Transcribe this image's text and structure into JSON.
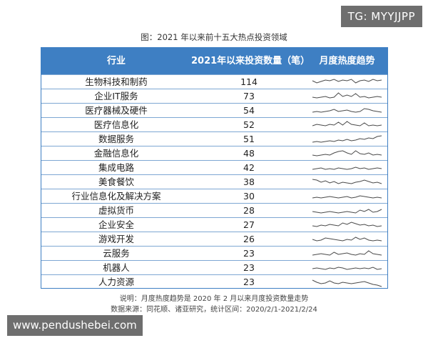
{
  "watermark_top": "TG: MYYJJPP",
  "title": "图：2021 年以来前十五大热点投资领域",
  "table": {
    "headers": [
      "行业",
      "2021年以来投资数量（笔）",
      "月度热度趋势"
    ],
    "rows": [
      {
        "name": "生物科技和制药",
        "count": "114"
      },
      {
        "name": "企业IT服务",
        "count": "73"
      },
      {
        "name": "医疗器械及硬件",
        "count": "54"
      },
      {
        "name": "医疗信息化",
        "count": "52"
      },
      {
        "name": "数据服务",
        "count": "51"
      },
      {
        "name": "金融信息化",
        "count": "48"
      },
      {
        "name": "集成电路",
        "count": "42"
      },
      {
        "name": "美食餐饮",
        "count": "38"
      },
      {
        "name": "行业信息化及解决方案",
        "count": "30"
      },
      {
        "name": "虚拟货币",
        "count": "28"
      },
      {
        "name": "企业安全",
        "count": "27"
      },
      {
        "name": "游戏开发",
        "count": "26"
      },
      {
        "name": "云服务",
        "count": "23"
      },
      {
        "name": "机器人",
        "count": "23"
      },
      {
        "name": "人力资源",
        "count": "23"
      }
    ]
  },
  "notes": {
    "line1": "说明：月度热度趋势是 2020 年 2 月以来月度投资数量走势",
    "line2": "数据来源：同花顺、诸亚研究，统计区间：2020/2/1-2021/2/24"
  },
  "watermark_bottom": "www.pendushebei.com",
  "colors": {
    "header_bg": "#3e7fc3",
    "row_border": "#7ea7d3",
    "sparkline": "#4a4a4a"
  }
}
